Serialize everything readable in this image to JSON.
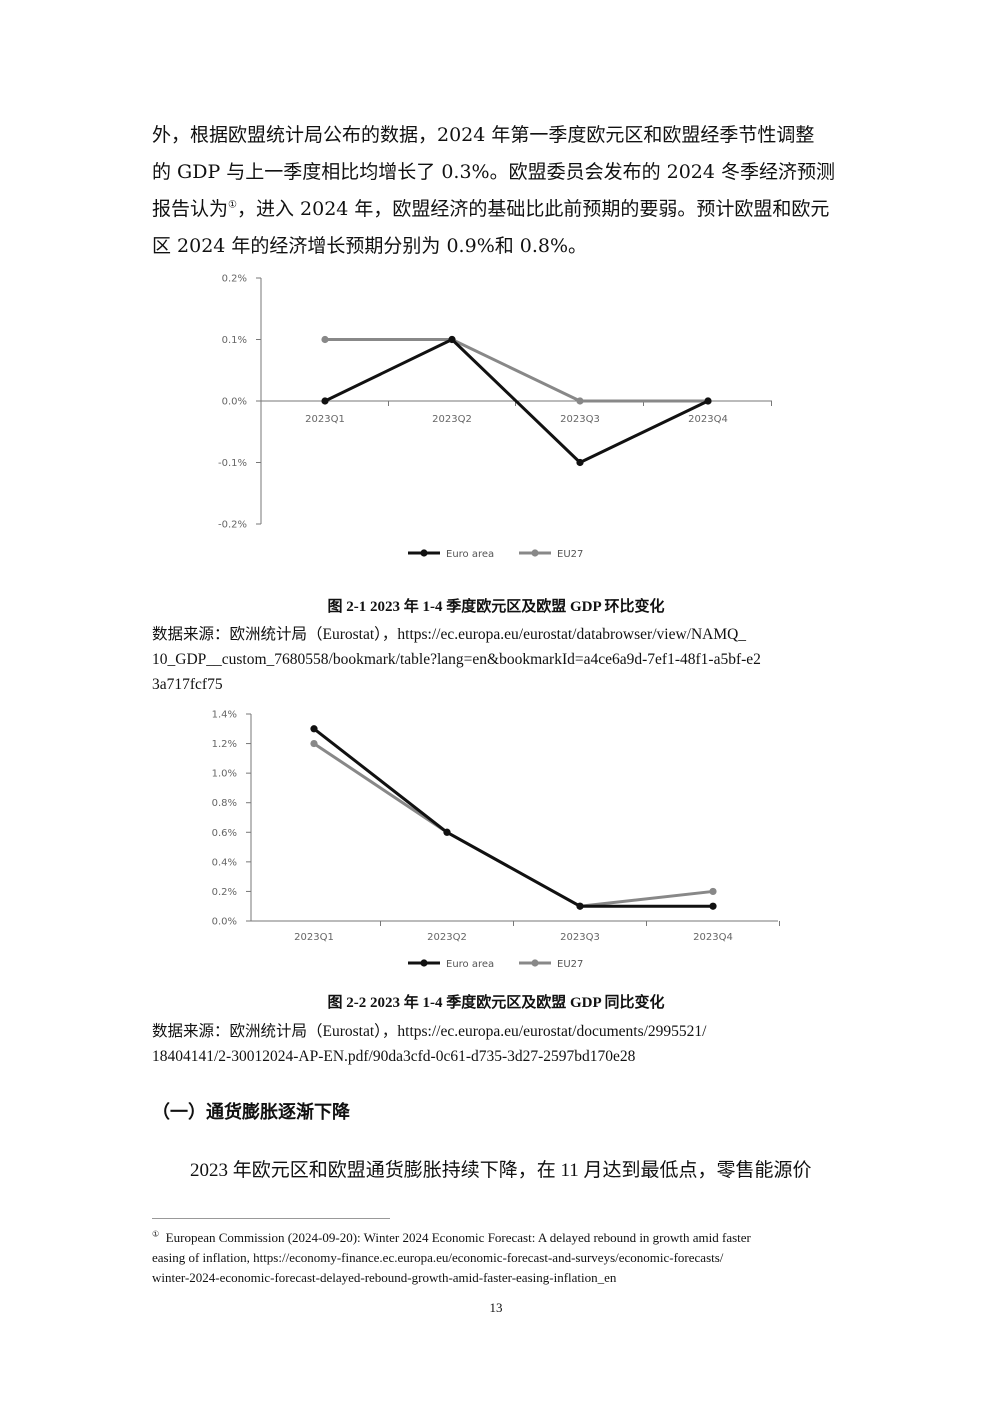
{
  "body": {
    "lines": [
      "外，根据欧盟统计局公布的数据，2024 年第一季度欧元区和欧盟经季节性调整",
      "的 GDP 与上一季度相比均增长了 0.3%。欧盟委员会发布的 2024 冬季经济预测",
      "报告认为",
      "，进入 2024 年，欧盟经济的基础比此前预期的要弱。预计欧盟和欧元",
      "区 2024 年的经济增长预期分别为 0.9%和 0.8%。"
    ],
    "footnote_marker": "①"
  },
  "chart_data": [
    {
      "type": "line",
      "categories": [
        "2023Q1",
        "2023Q2",
        "2023Q3",
        "2023Q4"
      ],
      "yticks": [
        "0.2%",
        "0.1%",
        "0.0%",
        "-0.1%",
        "-0.2%"
      ],
      "ylim": [
        -0.2,
        0.2
      ],
      "series": [
        {
          "name": "Euro area",
          "values": [
            0.0,
            0.1,
            -0.1,
            0.0
          ],
          "color": "#111111"
        },
        {
          "name": "EU27",
          "values": [
            0.1,
            0.1,
            0.0,
            0.0
          ],
          "color": "#888888"
        }
      ],
      "legend": "bottom",
      "grid": false
    },
    {
      "type": "line",
      "categories": [
        "2023Q1",
        "2023Q2",
        "2023Q3",
        "2023Q4"
      ],
      "yticks": [
        "1.4%",
        "1.2%",
        "1.0%",
        "0.8%",
        "0.6%",
        "0.4%",
        "0.2%",
        "0.0%"
      ],
      "ylim": [
        0.0,
        1.4
      ],
      "series": [
        {
          "name": "Euro area",
          "values": [
            1.3,
            0.6,
            0.1,
            0.1
          ],
          "color": "#111111"
        },
        {
          "name": "EU27",
          "values": [
            1.2,
            0.6,
            0.1,
            0.2
          ],
          "color": "#888888"
        }
      ],
      "legend": "bottom",
      "grid": false
    }
  ],
  "figure1": {
    "caption": "图 2-1 2023 年 1-4 季度欧元区及欧盟 GDP 环比变化",
    "source_lines": [
      "数据来源：欧洲统计局（Eurostat），https://ec.europa.eu/eurostat/databrowser/view/NAMQ_",
      "10_GDP__custom_7680558/bookmark/table?lang=en&bookmarkId=a4ce6a9d-7ef1-48f1-a5bf-e2",
      "3a717fcf75"
    ]
  },
  "figure2": {
    "caption": "图 2-2 2023 年 1-4 季度欧元区及欧盟 GDP 同比变化",
    "source_lines": [
      "数据来源：欧洲统计局（Eurostat），https://ec.europa.eu/eurostat/documents/2995521/",
      "18404141/2-30012024-AP-EN.pdf/90da3cfd-0c61-d735-3d27-2597bd170e28"
    ]
  },
  "section": {
    "heading": "（一）通货膨胀逐渐下降",
    "paragraph": "2023 年欧元区和欧盟通货膨胀持续下降，在 11 月达到最低点，零售能源价"
  },
  "footnote": {
    "marker": "①",
    "lines": [
      "European Commission (2024-09-20): Winter 2024 Economic Forecast: A delayed rebound in growth amid faster",
      "easing of inflation, https://economy-finance.ec.europa.eu/economic-forecast-and-surveys/economic-forecasts/",
      "winter-2024-economic-forecast-delayed-rebound-growth-amid-faster-easing-inflation_en"
    ]
  },
  "page": {
    "number": "13"
  }
}
